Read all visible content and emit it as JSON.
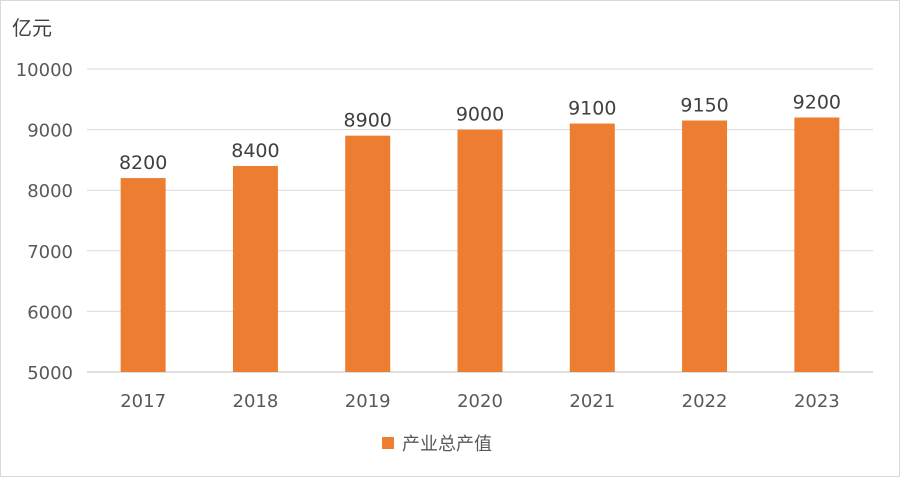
{
  "chart_data": {
    "type": "bar",
    "unit_label": "亿元",
    "categories": [
      "2017",
      "2018",
      "2019",
      "2020",
      "2021",
      "2022",
      "2023"
    ],
    "series": [
      {
        "name": "产业总产值",
        "values": [
          8200,
          8400,
          8900,
          9000,
          9100,
          9150,
          9200
        ],
        "color": "#ed7d31"
      }
    ],
    "ylim": [
      5000,
      10000
    ],
    "yticks": [
      "5000",
      "6000",
      "7000",
      "8000",
      "9000",
      "10000"
    ],
    "grid": true,
    "legend_position": "bottom",
    "data_labels": true
  }
}
